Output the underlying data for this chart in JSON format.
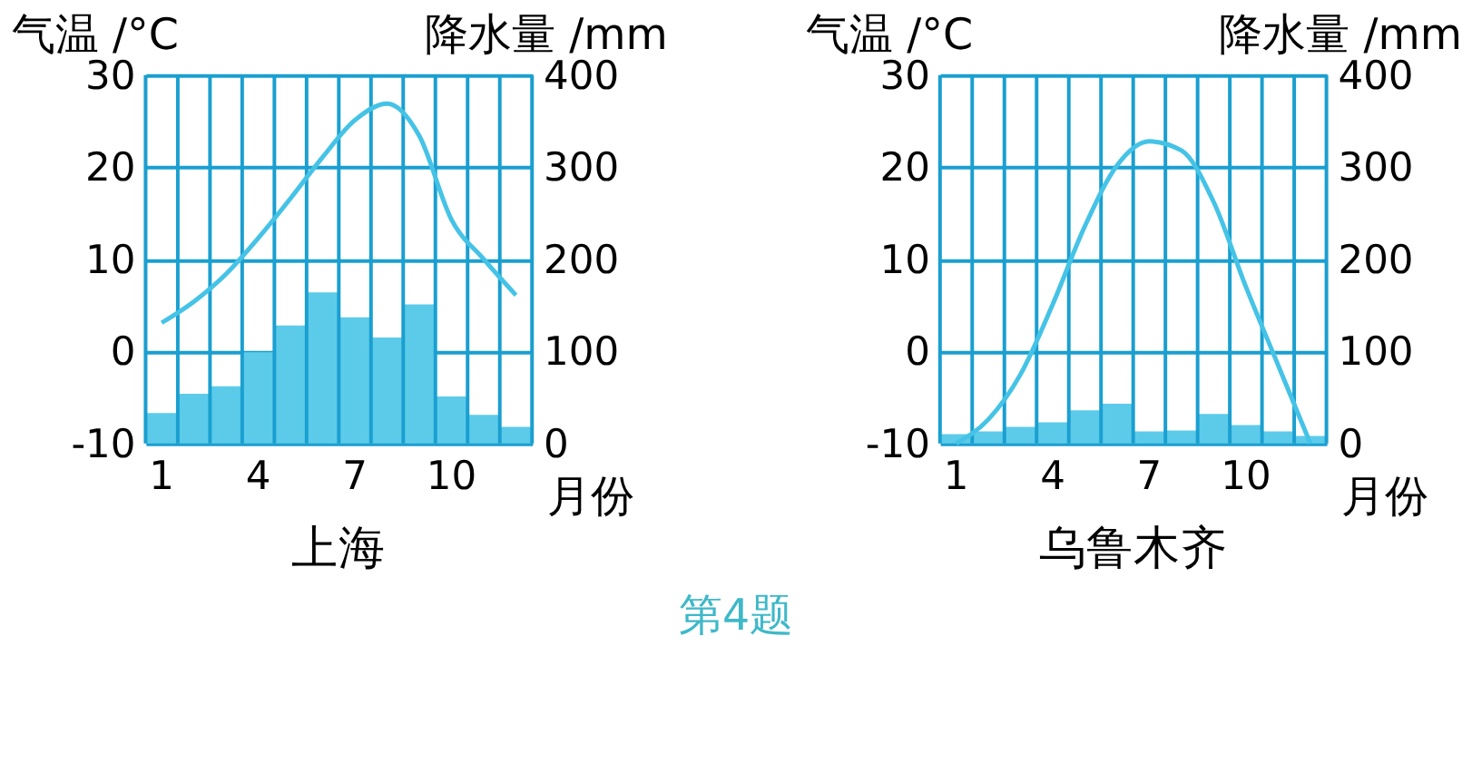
{
  "chart_data": [
    {
      "type": "bar",
      "title": "上海",
      "xlabel": "月份",
      "ylabel": "气温 /°C",
      "y2label": "降水量 /mm",
      "categories": [
        "1",
        null,
        null,
        "4",
        null,
        null,
        "7",
        null,
        null,
        "10",
        null,
        null
      ],
      "series": [
        {
          "axis": "y2",
          "color": "#5ccbea",
          "values": [
            33,
            54,
            62,
            99,
            128,
            164,
            137,
            115,
            151,
            51,
            31,
            18
          ]
        },
        {
          "type": "line",
          "axis": "y",
          "color": "#45c3e6",
          "values": [
            3.1,
            5.4,
            8.4,
            12.3,
            16.6,
            21.1,
            25.1,
            26.9,
            23.4,
            14.3,
            10,
            6.1
          ]
        }
      ],
      "ylim": [
        -10,
        30
      ],
      "yticks": [
        -10,
        0,
        10,
        20,
        30
      ],
      "y2lim": [
        0,
        400
      ],
      "y2ticks": [
        0,
        100,
        200,
        300,
        400
      ],
      "grid": true
    },
    {
      "type": "bar",
      "title": "乌鲁木齐",
      "xlabel": "月份",
      "ylabel": "气温 /°C",
      "y2label": "降水量 /mm",
      "categories": [
        "1",
        null,
        null,
        "4",
        null,
        null,
        "7",
        null,
        null,
        "10",
        null,
        null
      ],
      "series": [
        {
          "axis": "y2",
          "color": "#5ccbea",
          "values": [
            10,
            13,
            18,
            23,
            36,
            43,
            13,
            14,
            32,
            20,
            13,
            8
          ]
        },
        {
          "type": "line",
          "axis": "y",
          "color": "#45c3e6",
          "values": [
            -10,
            -7.4,
            -2.5,
            5.1,
            13.6,
            20.2,
            22.8,
            21.8,
            16.2,
            7,
            -1.5,
            -10
          ]
        }
      ],
      "ylim": [
        -10,
        30
      ],
      "yticks": [
        -10,
        0,
        10,
        20,
        30
      ],
      "y2lim": [
        0,
        400
      ],
      "y2ticks": [
        0,
        100,
        200,
        300,
        400
      ],
      "grid": true,
      "annotations": [
        "第4题"
      ]
    }
  ]
}
